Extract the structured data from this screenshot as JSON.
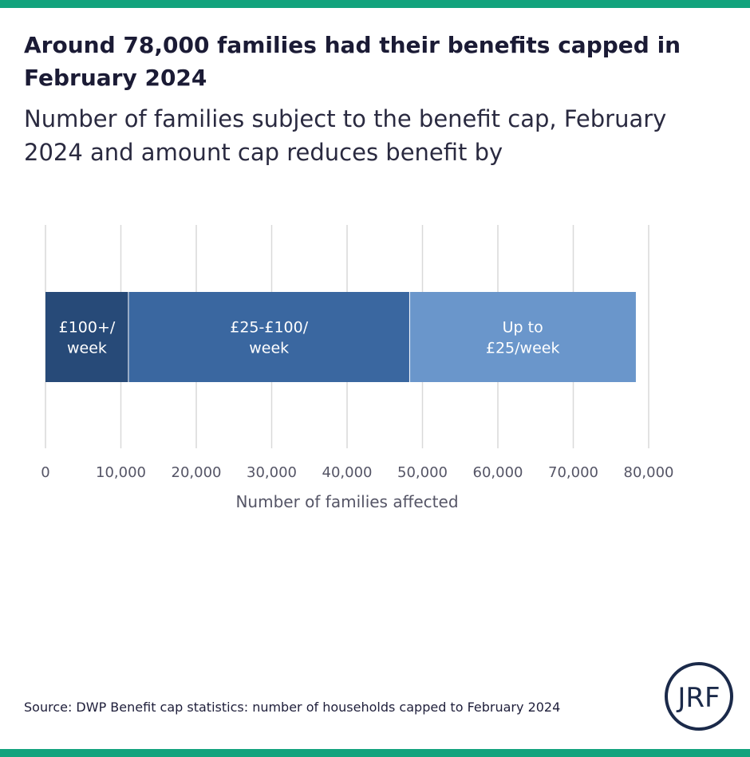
{
  "header": {
    "title": "Around 78,000 families had their benefits capped in February 2024",
    "subtitle": "Number of families subject to the benefit cap, February 2024 and amount cap reduces benefit by"
  },
  "chart_data": {
    "type": "bar",
    "orientation": "horizontal",
    "stacked": true,
    "xlabel": "Number of families affected",
    "xlim": [
      0,
      80000
    ],
    "ticks": [
      0,
      10000,
      20000,
      30000,
      40000,
      50000,
      60000,
      70000,
      80000
    ],
    "tick_labels": [
      "0",
      "10,000",
      "20,000",
      "30,000",
      "40,000",
      "50,000",
      "60,000",
      "70,000",
      "80,000"
    ],
    "grid": true,
    "series": [
      {
        "name": "£100+/ week",
        "label_lines": [
          "£100+/",
          "week"
        ],
        "value": 11000,
        "color": "#274a78"
      },
      {
        "name": "£25-£100/ week",
        "label_lines": [
          "£25-£100/",
          "week"
        ],
        "value": 37300,
        "color": "#3a67a0"
      },
      {
        "name": "Up to £25/week",
        "label_lines": [
          "Up to",
          "£25/week"
        ],
        "value": 30000,
        "color": "#6a96cb"
      }
    ]
  },
  "footer": {
    "source": "Source: DWP Benefit cap statistics: number of households capped to February 2024",
    "logo_text": "JRF"
  },
  "colors": {
    "accent": "#12a37d",
    "logo": "#1b2a4a",
    "grid": "#d9d9d9",
    "axis_text": "#555566"
  }
}
